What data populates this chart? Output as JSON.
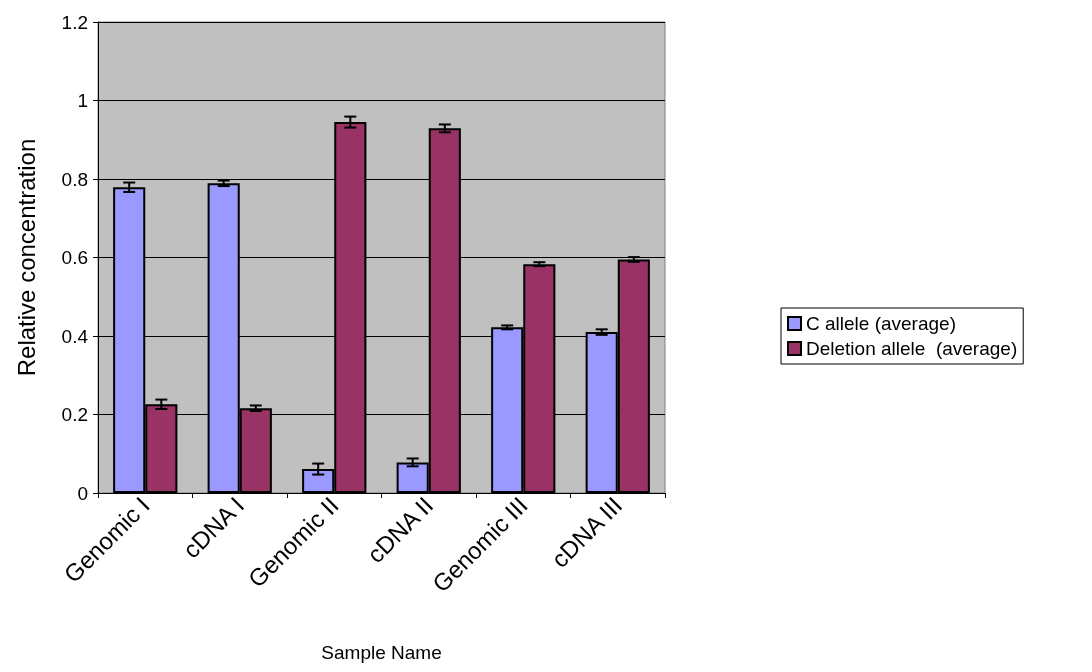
{
  "chart_data": {
    "type": "bar",
    "xlabel": "Sample Name",
    "ylabel": "Relative concentration",
    "categories": [
      "Genomic I",
      "cDNA I",
      "Genomic II",
      "cDNA II",
      "Genomic III",
      "cDNA III"
    ],
    "series": [
      {
        "name": "C allele (average)",
        "color": "#9999ff",
        "values": [
          0.779,
          0.789,
          0.061,
          0.078,
          0.422,
          0.41
        ],
        "errors": [
          0.012,
          0.007,
          0.014,
          0.01,
          0.005,
          0.007
        ]
      },
      {
        "name": "Deletion allele  (average)",
        "color": "#993366",
        "values": [
          0.226,
          0.216,
          0.945,
          0.929,
          0.583,
          0.595
        ],
        "errors": [
          0.012,
          0.007,
          0.014,
          0.01,
          0.005,
          0.006
        ]
      }
    ],
    "ylim": [
      0,
      1.2
    ],
    "yticks": [
      0,
      0.2,
      0.4,
      0.6,
      0.8,
      1,
      1.2
    ],
    "grid": "y",
    "legend": "right"
  }
}
